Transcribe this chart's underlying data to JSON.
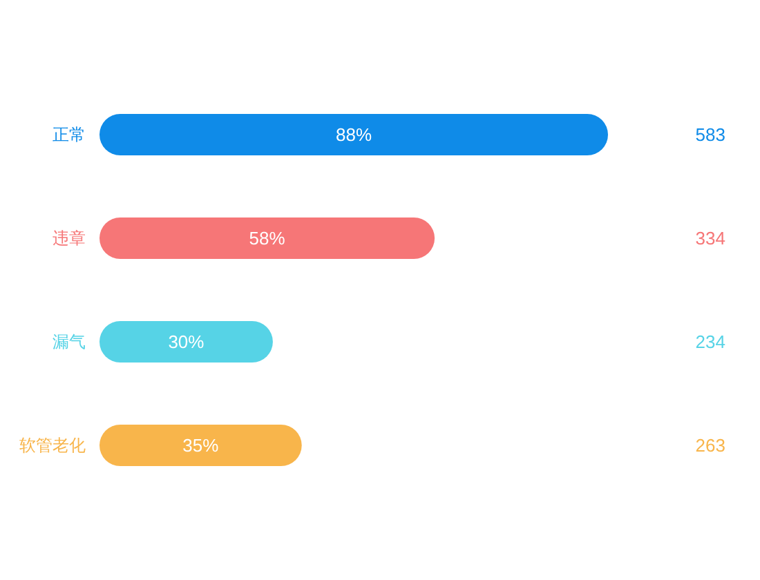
{
  "chart_data": {
    "type": "bar",
    "orientation": "horizontal",
    "categories": [
      "正常",
      "违章",
      "漏气",
      "软管老化"
    ],
    "values": [
      88,
      58,
      30,
      35
    ],
    "colors": [
      "#0f8be8",
      "#f67677",
      "#56d3e6",
      "#f8b54b"
    ],
    "value_labels": [
      "88%",
      "58%",
      "30%",
      "35%"
    ],
    "annotations": [
      "583",
      "334",
      "234",
      "263"
    ]
  }
}
